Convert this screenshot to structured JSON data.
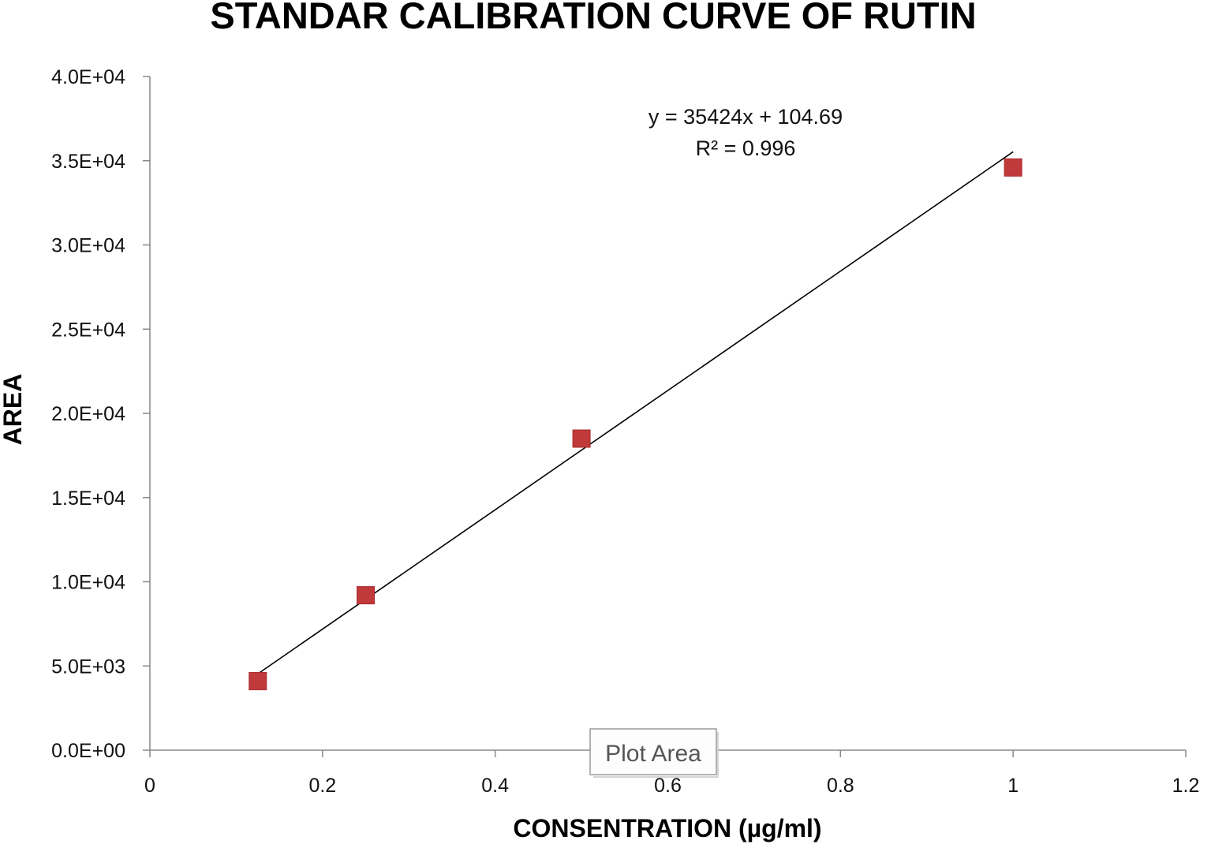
{
  "chart_data": {
    "type": "scatter",
    "title": "STANDAR CALIBRATION CURVE OF RUTIN",
    "xlabel": "CONSENTRATION (µg/ml)",
    "ylabel": "AREA",
    "xlim": [
      0,
      1.2
    ],
    "ylim": [
      0,
      40000
    ],
    "x_ticks": [
      0,
      0.2,
      0.4,
      0.6,
      0.8,
      1,
      1.2
    ],
    "x_tick_labels": [
      "0",
      "0.2",
      "0.4",
      "0.6",
      "0.8",
      "1",
      "1.2"
    ],
    "y_ticks": [
      0,
      5000,
      10000,
      15000,
      20000,
      25000,
      30000,
      35000,
      40000
    ],
    "y_tick_labels": [
      "0.0E+00",
      "5.0E+03",
      "1.0E+04",
      "1.5E+04",
      "2.0E+04",
      "2.5E+04",
      "3.0E+04",
      "3.5E+04",
      "4.0E+04"
    ],
    "grid": false,
    "legend": "none",
    "series": [
      {
        "marker": "square",
        "color": "#c0393b",
        "points": [
          {
            "x": 0.125,
            "y": 4100
          },
          {
            "x": 0.25,
            "y": 9200
          },
          {
            "x": 0.5,
            "y": 18500
          },
          {
            "x": 1.0,
            "y": 34600
          }
        ]
      }
    ],
    "trendline": {
      "type": "linear",
      "slope": 35424,
      "intercept": 104.69,
      "x_range": [
        0.125,
        1.0
      ],
      "color": "#000000"
    },
    "annotations": [
      {
        "text": "y = 35424x + 104.69"
      },
      {
        "text": "R² = 0.996"
      }
    ],
    "tooltip": {
      "text": "Plot Area"
    }
  }
}
